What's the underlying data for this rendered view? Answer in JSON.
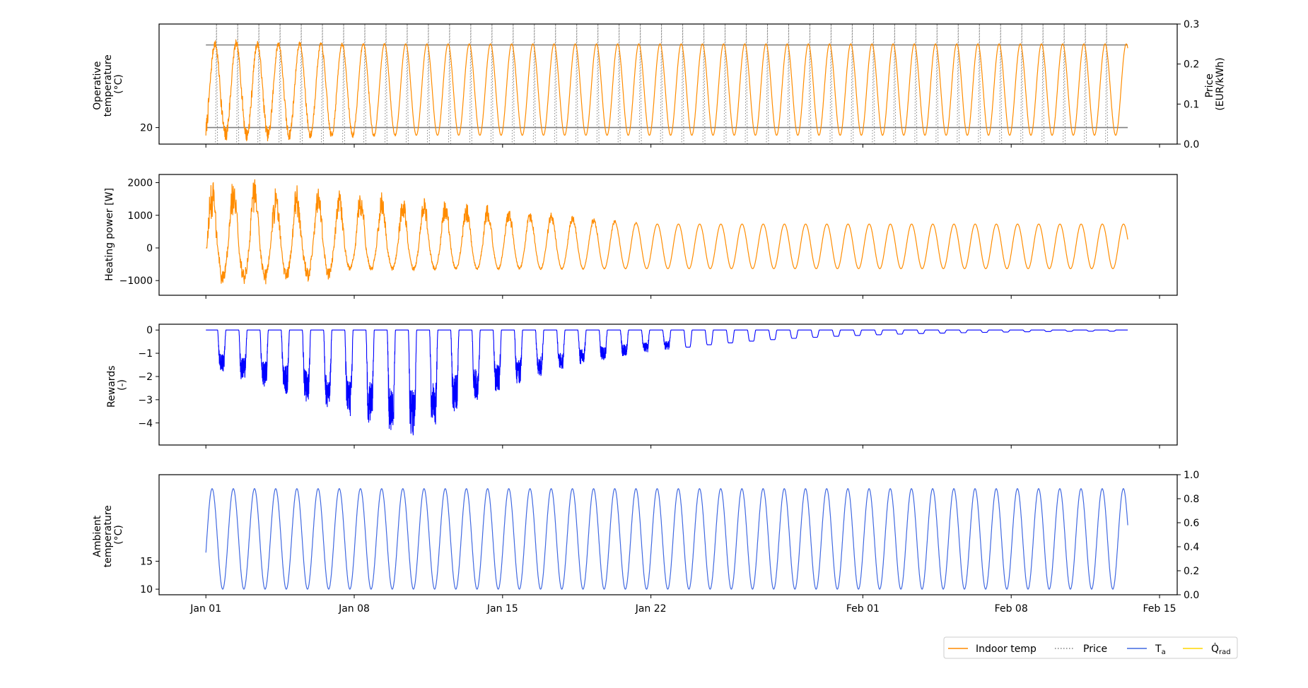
{
  "chart_data": [
    {
      "type": "line",
      "panel": "operative-temperature",
      "ylabel_lines": [
        "Operative",
        "temperature",
        "(°C)"
      ],
      "y_ticks": [
        {
          "value": 20,
          "label": "20"
        }
      ],
      "ylim": [
        18.5,
        29.4
      ],
      "y2label_lines": [
        "Price",
        "(EUR/kWh)"
      ],
      "y2_ticks": [
        {
          "value": 0.0,
          "label": "0.0"
        },
        {
          "value": 0.1,
          "label": "0.1"
        },
        {
          "value": 0.2,
          "label": "0.2"
        },
        {
          "value": 0.3,
          "label": "0.3"
        }
      ],
      "y2lim": [
        0.0,
        0.3
      ],
      "comfort_band": [
        20,
        27.5
      ],
      "series": [
        {
          "name": "Indoor temp",
          "color": "#ff8c00",
          "style": "solid",
          "signal": "daily sinusoid between about 19.3 and 27.6, noisy in the first 10 days",
          "min": 19.3,
          "max": 27.6,
          "noise_days": 10
        },
        {
          "name": "Price",
          "color": "#808080",
          "style": "dotted",
          "signal": "daily price pulse from 0.0 to 0.3 EUR/kWh",
          "low": 0.0,
          "high": 0.3
        }
      ]
    },
    {
      "type": "line",
      "panel": "heating-power",
      "ylabel": "Heating power [W]",
      "y_ticks": [
        {
          "value": -1000,
          "label": "−1000"
        },
        {
          "value": 0,
          "label": "0"
        },
        {
          "value": 1000,
          "label": "1000"
        },
        {
          "value": 2000,
          "label": "2000"
        }
      ],
      "ylim": [
        -1450,
        2250
      ],
      "series": [
        {
          "name": "Heating power",
          "color": "#ff8c00",
          "signal": "daily oscillation of about ±950 W with large noisy spikes (up to 2100 W / down to -1250 W) during the first 3 weeks",
          "steady_amplitude": 950,
          "peak_max": 2100,
          "peak_min": -1250
        }
      ]
    },
    {
      "type": "line",
      "panel": "rewards",
      "ylabel_lines": [
        "Rewards",
        "(-)"
      ],
      "y_ticks": [
        {
          "value": -4,
          "label": "−4"
        },
        {
          "value": -3,
          "label": "−3"
        },
        {
          "value": -2,
          "label": "−2"
        },
        {
          "value": -1,
          "label": "−1"
        },
        {
          "value": 0,
          "label": "0"
        }
      ],
      "ylim": [
        -4.95,
        0.25
      ],
      "series": [
        {
          "name": "Rewards",
          "color": "#0000ff",
          "signal": "near zero with daily negative dips, deepest about -4.7 around Jan 09, decaying to about -0.05 by Feb 12",
          "min": -4.7
        }
      ]
    },
    {
      "type": "line",
      "panel": "ambient-temperature",
      "ylabel_lines": [
        "Ambient",
        "temperature",
        "(°C)"
      ],
      "y_ticks": [
        {
          "value": 10,
          "label": "10"
        },
        {
          "value": 15,
          "label": "15"
        }
      ],
      "ylim": [
        9.0,
        30.5
      ],
      "y2_ticks": [
        {
          "value": 0.0,
          "label": "0.0"
        },
        {
          "value": 0.2,
          "label": "0.2"
        },
        {
          "value": 0.4,
          "label": "0.4"
        },
        {
          "value": 0.6,
          "label": "0.6"
        },
        {
          "value": 0.8,
          "label": "0.8"
        },
        {
          "value": 1.0,
          "label": "1.0"
        }
      ],
      "y2lim": [
        0.0,
        1.0
      ],
      "series": [
        {
          "name": "T_a",
          "color": "#4169e1",
          "signal": "daily sinusoid between 10 and 28 °C",
          "min": 10,
          "max": 28
        }
      ]
    }
  ],
  "x_axis": {
    "start": "2024-01-01",
    "end": "2024-02-13T12:00",
    "xlim": [
      "2023-12-29T19:00",
      "2024-02-15T20:00"
    ],
    "ticks": [
      {
        "date": "2024-01-01",
        "label": "Jan 01"
      },
      {
        "date": "2024-01-08",
        "label": "Jan 08"
      },
      {
        "date": "2024-01-15",
        "label": "Jan 15"
      },
      {
        "date": "2024-01-22",
        "label": "Jan 22"
      },
      {
        "date": "2024-02-01",
        "label": "Feb 01"
      },
      {
        "date": "2024-02-08",
        "label": "Feb 08"
      },
      {
        "date": "2024-02-15",
        "label": "Feb 15"
      }
    ]
  },
  "legend": {
    "placement": "bottom-right",
    "entries": [
      {
        "label": "Indoor temp",
        "color": "#ff8c00",
        "style": "solid"
      },
      {
        "label": "Price",
        "color": "#808080",
        "style": "dotted"
      },
      {
        "label": "T",
        "sub": "a",
        "color": "#4169e1",
        "style": "solid"
      },
      {
        "label": "Q̇",
        "sub": "rad",
        "color": "#ffd700",
        "style": "solid"
      }
    ]
  }
}
